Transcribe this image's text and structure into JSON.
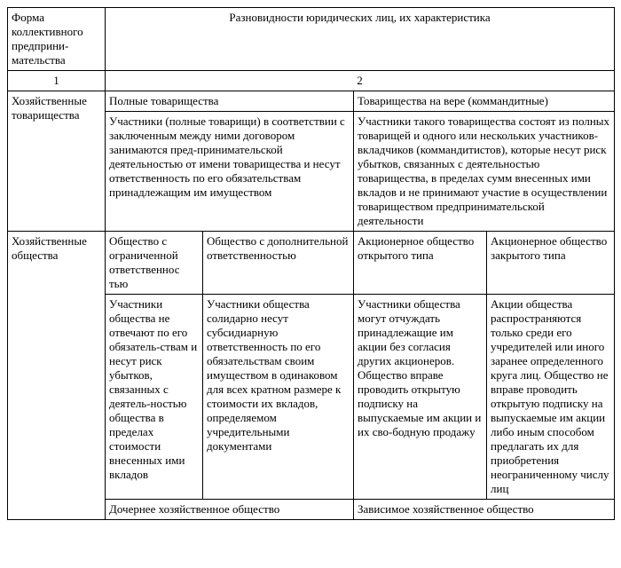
{
  "header": {
    "form_label": "Форма коллективного предприни-мательства",
    "varieties_label": "Разновидности юридических лиц, их характеристика",
    "col1_num": "1",
    "col2_num": "2"
  },
  "row1": {
    "label": "Хозяйственные товарищества",
    "left_title": "Полные товарищества",
    "right_title": "Товарищества на вере (коммандитные)",
    "left_body": "Участники (полные товарищи) в соответствии с заключенным между ними договором занимаются пред-принимательской деятельностью от имени товарищества и несут ответственность по его обязательствам принадлежащим им имуществом",
    "right_body": "Участники такого товарищества состоят из полных товарищей и одного или нескольких участников-вкладчиков (коммандитистов), которые несут риск убытков, связанных с деятельностью товарищества, в пределах сумм внесенных ими вкладов и не принимают участие в осуществлении товариществом предпринимательской деятельности"
  },
  "row2": {
    "label": "Хозяйственные общества",
    "h_ooo": "Общество с ограниченной ответственнос тью",
    "h_odo": "Общество с дополнительной ответственностью",
    "h_oao": "Акционерное общество открытого типа",
    "h_zao": "Акционерное общество закрытого типа",
    "b_ooo": "Участники общества не отвечают по его обязатель-ствам и несут риск убытков, связанных с деятель-ностью общества в пределах стоимости внесенных ими вкладов",
    "b_odo": "Участники общества солидарно несут субсидиарную ответственность по его обязательствам своим имуществом в одинаковом для всех кратном размере к стоимости их вкладов, определяемом учредительными документами",
    "b_oao": "Участники общества могут отчуждать принадлежащие им акции без согласия других акционеров. Общество вправе проводить открытую подписку на выпускаемые им акции и их сво-бодную продажу",
    "b_zao": "Акции общества распространяются только среди его учредителей или иного заранее определенного круга лиц. Общество не вправе проводить открытую подписку на выпускаемые им акции либо иным способом предлагать их для приобретения неограниченному числу лиц",
    "sub_left": "Дочернее хозяйственное общество",
    "sub_right": "Зависимое хозяйственное общество"
  }
}
